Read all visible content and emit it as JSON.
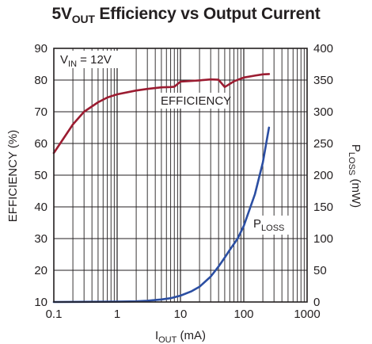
{
  "chart_data": {
    "type": "line",
    "title": {
      "main": "5V",
      "main_sub": "OUT",
      "rest": " Efficiency vs Output Current"
    },
    "xlabel": {
      "main": "I",
      "sub": "OUT",
      "rest": " (mA)"
    },
    "ylabel_left": "EFFICIENCY (%)",
    "ylabel_right": {
      "main": "P",
      "sub": "LOSS",
      "rest": " (mW)"
    },
    "x_scale": "log",
    "xlim": [
      0.1,
      1000
    ],
    "ylim_left": [
      10,
      90
    ],
    "ylim_right": [
      0,
      400
    ],
    "x_ticks": [
      0.1,
      1,
      10,
      100,
      1000
    ],
    "x_tick_labels": [
      "0.1",
      "1",
      "10",
      "100",
      "1000"
    ],
    "y_left_ticks": [
      10,
      20,
      30,
      40,
      50,
      60,
      70,
      80,
      90
    ],
    "y_left_tick_labels": [
      "10",
      "20",
      "30",
      "40",
      "50",
      "60",
      "70",
      "80",
      "90"
    ],
    "y_right_ticks": [
      0,
      50,
      100,
      150,
      200,
      250,
      300,
      350,
      400
    ],
    "y_right_tick_labels": [
      "0",
      "50",
      "100",
      "150",
      "200",
      "250",
      "300",
      "350",
      "400"
    ],
    "grid": true,
    "annotations": {
      "vin": {
        "main": "V",
        "sub": "IN",
        "rest": " = 12V"
      },
      "efficiency": "EFFICIENCY",
      "ploss": {
        "main": "P",
        "sub": "LOSS"
      }
    },
    "colors": {
      "efficiency": "#9b1c31",
      "ploss": "#2b4ea2",
      "grid": "#231f20"
    },
    "series": [
      {
        "axis": "left",
        "x": [
          0.1,
          0.2,
          0.3,
          0.5,
          0.7,
          1,
          2,
          3,
          5,
          7,
          8,
          10,
          20,
          30,
          40,
          50,
          70,
          100,
          150,
          200,
          250
        ],
        "values": [
          57,
          66,
          70,
          73,
          74.5,
          75.5,
          76.7,
          77.2,
          77.7,
          77.8,
          77.9,
          79.5,
          79.9,
          80.2,
          80.1,
          77.8,
          79.6,
          80.8,
          81.4,
          81.8,
          81.9
        ]
      },
      {
        "axis": "right",
        "x": [
          0.1,
          0.3,
          1,
          2,
          3,
          5,
          7,
          10,
          15,
          20,
          30,
          40,
          50,
          60,
          80,
          100,
          150,
          200,
          250
        ],
        "values": [
          0,
          0.2,
          0.5,
          1,
          2,
          4,
          6,
          10,
          17,
          24,
          40,
          56,
          70,
          82,
          100,
          120,
          170,
          220,
          275
        ]
      }
    ]
  }
}
